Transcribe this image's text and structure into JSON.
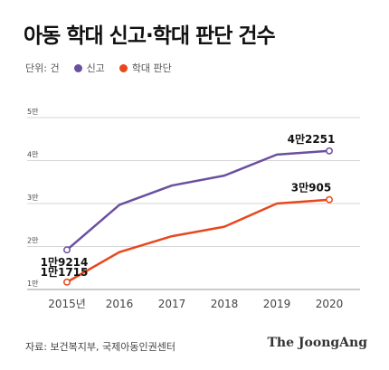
{
  "title": "아동 학대 신고·학대 판단 건수",
  "legend": {
    "unit": "단위: 건",
    "series0": "신고",
    "series1": "학대 판단"
  },
  "source": "자료: 보건복지부, 국제아동인권센터",
  "brand": "The JoongAng",
  "chart_data": {
    "type": "line",
    "title": "아동 학대 신고·학대 판단 건수",
    "x": [
      "2015년",
      "2016",
      "2017",
      "2018",
      "2019",
      "2020"
    ],
    "y_ticks": [
      "1만",
      "2만",
      "3만",
      "4만",
      "5만"
    ],
    "ylim": [
      10000,
      50000
    ],
    "grid": true,
    "legend_position": "top-left",
    "series": [
      {
        "name": "신고",
        "color": "#6b4fa0",
        "values": [
          19214,
          29700,
          34200,
          36500,
          41400,
          42251
        ]
      },
      {
        "name": "학대 판단",
        "color": "#e8471c",
        "values": [
          11715,
          18700,
          22400,
          24600,
          30000,
          30905
        ]
      }
    ],
    "annotations": [
      {
        "series": 0,
        "point": 0,
        "text": "1만9214"
      },
      {
        "series": 0,
        "point": 5,
        "text": "4만2251"
      },
      {
        "series": 1,
        "point": 0,
        "text": "1만1715"
      },
      {
        "series": 1,
        "point": 5,
        "text": "3만905"
      }
    ]
  }
}
